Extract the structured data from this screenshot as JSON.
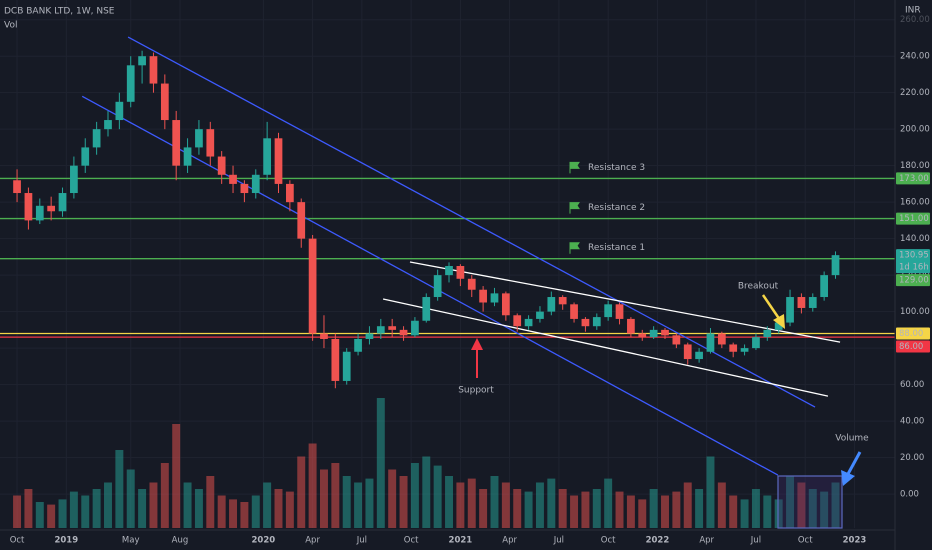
{
  "chart_data": {
    "type": "candlestick",
    "title": "DCB BANK LTD, 1W, NSE",
    "volume_label": "Vol",
    "currency": "INR",
    "up_color": "#26a69a",
    "down_color": "#ef5350",
    "x": [
      0,
      3,
      6,
      9,
      12,
      15,
      18,
      21,
      24,
      27,
      30,
      33,
      36,
      39,
      42,
      45,
      48,
      51,
      54,
      57,
      60,
      63,
      66,
      69,
      72,
      75,
      78,
      81,
      84,
      87,
      90,
      93,
      96,
      99,
      102,
      105,
      108,
      111,
      114,
      117,
      120,
      123,
      126,
      129,
      132,
      135,
      138,
      141,
      144,
      147,
      150,
      153,
      156,
      159,
      162,
      165,
      168,
      171,
      174,
      177,
      180,
      183,
      186,
      189,
      192,
      195,
      198,
      201,
      204,
      207,
      210,
      213,
      216
    ],
    "open": [
      172,
      165,
      150,
      158,
      155,
      165,
      180,
      190,
      200,
      205,
      215,
      235,
      240,
      225,
      205,
      180,
      190,
      200,
      185,
      175,
      170,
      165,
      175,
      195,
      170,
      160,
      140,
      88,
      85,
      62,
      78,
      85,
      88,
      92,
      90,
      87,
      95,
      108,
      120,
      125,
      118,
      112,
      105,
      110,
      98,
      92,
      96,
      100,
      108,
      104,
      96,
      92,
      97,
      104,
      96,
      88,
      86,
      90,
      87,
      82,
      74,
      78,
      88,
      82,
      78,
      80,
      86,
      90,
      94,
      108,
      102,
      108,
      120
    ],
    "high": [
      178,
      168,
      162,
      163,
      168,
      185,
      195,
      204,
      210,
      220,
      240,
      243,
      242,
      230,
      210,
      195,
      205,
      204,
      188,
      180,
      172,
      178,
      204,
      198,
      172,
      162,
      142,
      98,
      88,
      80,
      88,
      92,
      96,
      96,
      92,
      97,
      110,
      123,
      127,
      126,
      120,
      114,
      113,
      111,
      99,
      98,
      103,
      111,
      109,
      105,
      97,
      99,
      106,
      105,
      97,
      90,
      92,
      91,
      88,
      83,
      80,
      91,
      89,
      83,
      82,
      88,
      92,
      96,
      112,
      110,
      110,
      122,
      133
    ],
    "low": [
      160,
      145,
      148,
      150,
      152,
      162,
      176,
      186,
      196,
      200,
      212,
      225,
      220,
      200,
      172,
      176,
      186,
      180,
      170,
      165,
      160,
      162,
      172,
      165,
      155,
      135,
      84,
      80,
      58,
      60,
      76,
      82,
      85,
      86,
      84,
      86,
      94,
      106,
      116,
      114,
      108,
      100,
      103,
      95,
      89,
      90,
      94,
      98,
      101,
      94,
      89,
      90,
      95,
      93,
      86,
      84,
      85,
      85,
      80,
      71,
      72,
      77,
      80,
      75,
      76,
      79,
      84,
      88,
      92,
      99,
      100,
      106,
      118
    ],
    "close": [
      165,
      150,
      158,
      155,
      165,
      180,
      190,
      200,
      205,
      215,
      235,
      240,
      225,
      205,
      180,
      190,
      200,
      185,
      175,
      170,
      165,
      175,
      195,
      170,
      160,
      140,
      88,
      85,
      62,
      78,
      85,
      88,
      92,
      90,
      87,
      95,
      108,
      120,
      125,
      118,
      112,
      105,
      110,
      98,
      92,
      96,
      100,
      108,
      104,
      96,
      92,
      97,
      104,
      96,
      88,
      86,
      90,
      87,
      82,
      74,
      78,
      88,
      82,
      78,
      80,
      86,
      90,
      94,
      108,
      102,
      108,
      120,
      130.95
    ],
    "volume": [
      25,
      30,
      20,
      18,
      22,
      28,
      25,
      30,
      35,
      60,
      45,
      30,
      35,
      50,
      80,
      35,
      30,
      40,
      25,
      22,
      20,
      25,
      35,
      30,
      28,
      55,
      65,
      45,
      50,
      40,
      35,
      38,
      100,
      45,
      40,
      50,
      55,
      48,
      40,
      35,
      38,
      30,
      40,
      35,
      30,
      28,
      35,
      38,
      30,
      25,
      28,
      30,
      38,
      28,
      25,
      22,
      30,
      25,
      28,
      35,
      30,
      55,
      35,
      25,
      22,
      30,
      25,
      22,
      40,
      35,
      30,
      28,
      35
    ],
    "vlim": [
      0,
      100
    ],
    "xlim": [
      -4.5,
      231.7
    ],
    "xticks": [
      {
        "value": 0,
        "label": "Oct"
      },
      {
        "value": 13,
        "label": "2019"
      },
      {
        "value": 30,
        "label": "May"
      },
      {
        "value": 43,
        "label": "Aug"
      },
      {
        "value": 65,
        "label": "2020"
      },
      {
        "value": 78,
        "label": "Apr"
      },
      {
        "value": 91,
        "label": "Jul"
      },
      {
        "value": 104,
        "label": "Oct"
      },
      {
        "value": 117,
        "label": "2021"
      },
      {
        "value": 130,
        "label": "Apr"
      },
      {
        "value": 143,
        "label": "Jul"
      },
      {
        "value": 156,
        "label": "Oct"
      },
      {
        "value": 169,
        "label": "2022"
      },
      {
        "value": 182,
        "label": "Apr"
      },
      {
        "value": 195,
        "label": "Jul"
      },
      {
        "value": 208,
        "label": "Oct"
      },
      {
        "value": 221,
        "label": "2023"
      }
    ],
    "ylim": [
      -18.6,
      270.8
    ],
    "yticks": [
      {
        "value": 0,
        "label": "0.00"
      },
      {
        "value": 20,
        "label": "20.00"
      },
      {
        "value": 40,
        "label": "40.00"
      },
      {
        "value": 60,
        "label": "60.00"
      },
      {
        "value": 80,
        "label": "80.00"
      },
      {
        "value": 100,
        "label": "100.00"
      },
      {
        "value": 120,
        "label": "120.00"
      },
      {
        "value": 140,
        "label": "140.00"
      },
      {
        "value": 160,
        "label": "160.00"
      },
      {
        "value": 180,
        "label": "180.00"
      },
      {
        "value": 200,
        "label": "200.00"
      },
      {
        "value": 220,
        "label": "220.00"
      },
      {
        "value": 240,
        "label": "240.00"
      },
      {
        "value": 260,
        "label": "260.00"
      }
    ],
    "grid": true,
    "levels": [
      {
        "value": 173,
        "label": "173.00",
        "name": "Resistance 3",
        "color": "#4caf50"
      },
      {
        "value": 151,
        "label": "151.00",
        "name": "Resistance 2",
        "color": "#4caf50"
      },
      {
        "value": 129,
        "label": "129.00",
        "name": "Resistance 1",
        "color": "#4caf50"
      },
      {
        "value": 88,
        "label": "88.00",
        "color": "#f5d547"
      },
      {
        "value": 86,
        "label": "86.00",
        "color": "#f23645"
      }
    ],
    "last_price": {
      "value": 130.95,
      "countdown": "1d 16h",
      "color": "#26a69a"
    },
    "trendlines": [
      {
        "x": [
          29.3,
          210.6
        ],
        "y": [
          250.5,
          47.7
        ],
        "color": "#3d5afe"
      },
      {
        "x": [
          17.2,
          200.8
        ],
        "y": [
          218,
          10.4
        ],
        "color": "#3d5afe"
      },
      {
        "x": [
          103.7,
          217.2
        ],
        "y": [
          127.2,
          83.3
        ],
        "color": "#ffffff"
      },
      {
        "x": [
          96.6,
          214
        ],
        "y": [
          106.9,
          53.7
        ],
        "color": "#ffffff"
      }
    ],
    "annotations": [
      {
        "text": "Breakout",
        "color": "#f5d547"
      },
      {
        "text": "Support",
        "color": "#f23645"
      },
      {
        "text": "Volume",
        "color": "#448aff"
      }
    ]
  }
}
